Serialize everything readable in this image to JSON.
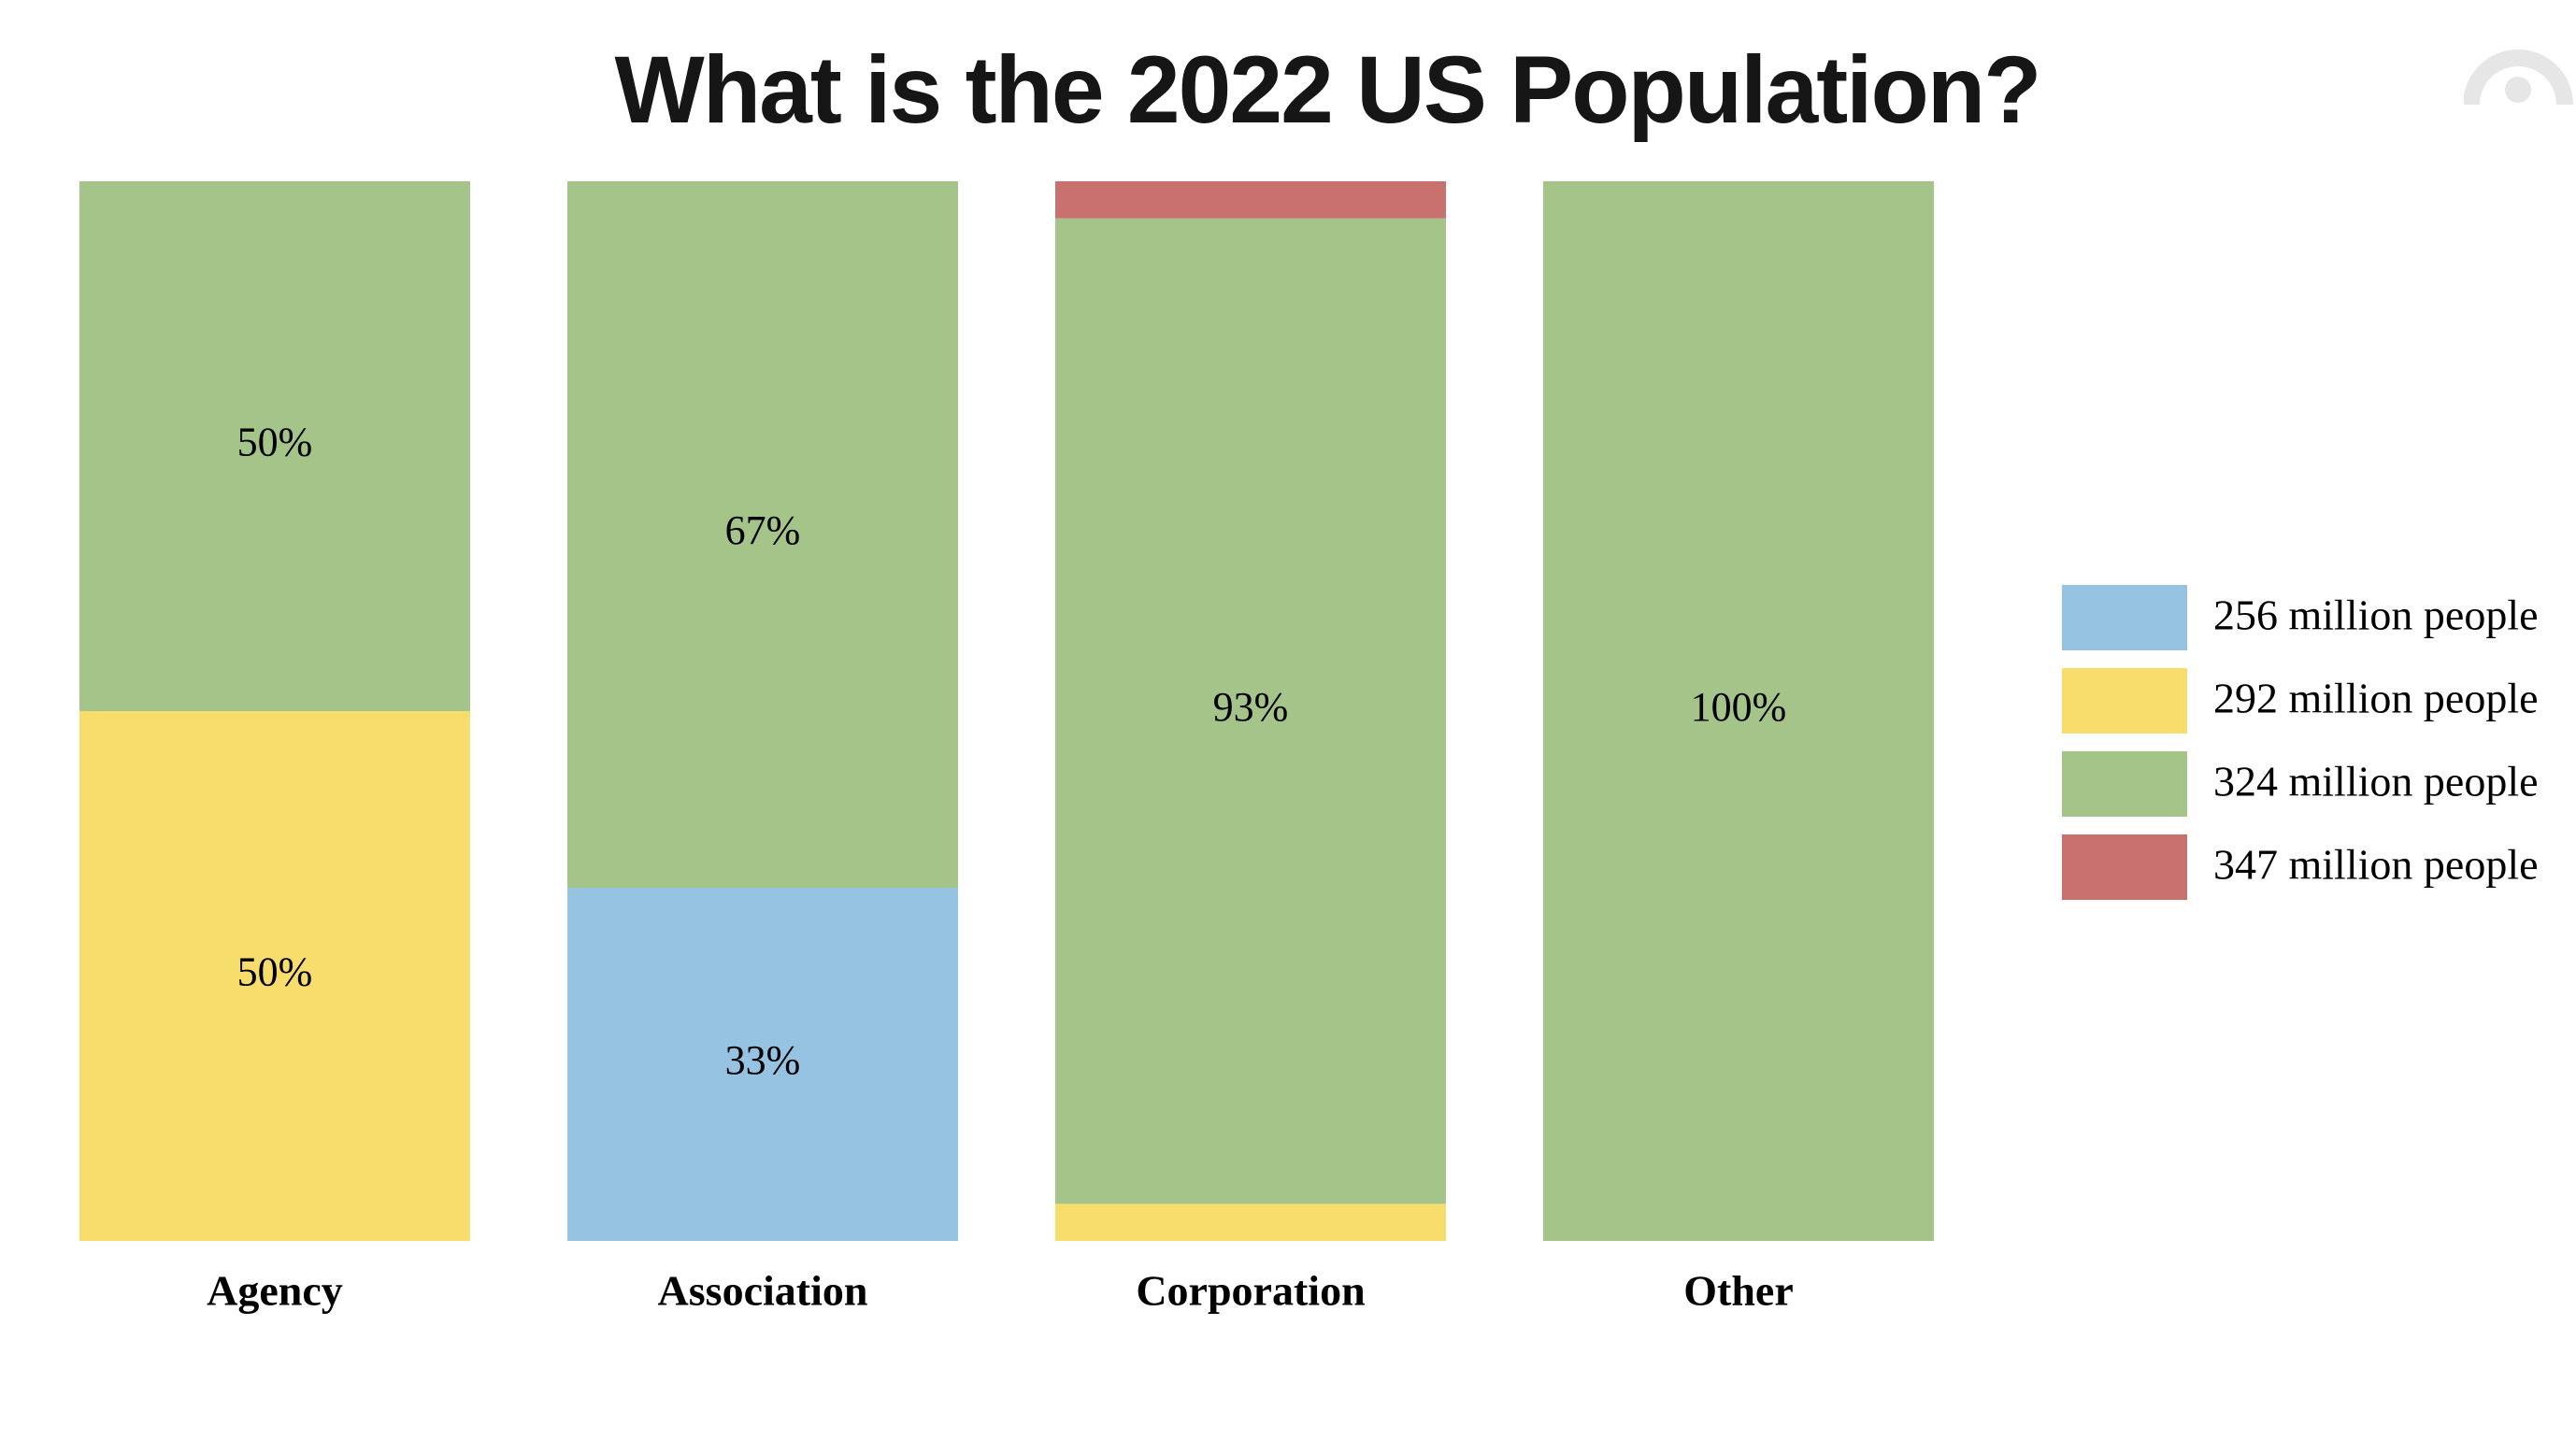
{
  "title": "What is the 2022 US Population?",
  "chart_data": {
    "type": "bar",
    "stacked": true,
    "normalized": true,
    "title": "What is the 2022 US Population?",
    "xlabel": "",
    "ylabel": "",
    "ylim": [
      0,
      100
    ],
    "grid": false,
    "legend_position": "right",
    "categories": [
      "Agency",
      "Association",
      "Corporation",
      "Other"
    ],
    "series": [
      {
        "name": "256 million people",
        "color": "#95c3e1",
        "values": [
          0,
          33.33,
          0,
          0
        ]
      },
      {
        "name": "292 million people",
        "color": "#f7dd6c",
        "values": [
          50,
          0,
          3.5,
          0
        ]
      },
      {
        "name": "324 million people",
        "color": "#a5c489",
        "values": [
          50,
          66.67,
          93,
          100
        ]
      },
      {
        "name": "347 million people",
        "color": "#c9716e",
        "values": [
          0,
          0,
          3.5,
          0
        ]
      }
    ],
    "data_labels": [
      {
        "category": "Agency",
        "series": "292 million people",
        "text": "50%"
      },
      {
        "category": "Agency",
        "series": "324 million people",
        "text": "50%"
      },
      {
        "category": "Association",
        "series": "256 million people",
        "text": "33%"
      },
      {
        "category": "Association",
        "series": "324 million people",
        "text": "67%"
      },
      {
        "category": "Corporation",
        "series": "324 million people",
        "text": "93%"
      },
      {
        "category": "Other",
        "series": "324 million people",
        "text": "100%"
      }
    ]
  },
  "logo": {
    "icon": "brand-logo-icon",
    "color": "#e6e6e6"
  }
}
